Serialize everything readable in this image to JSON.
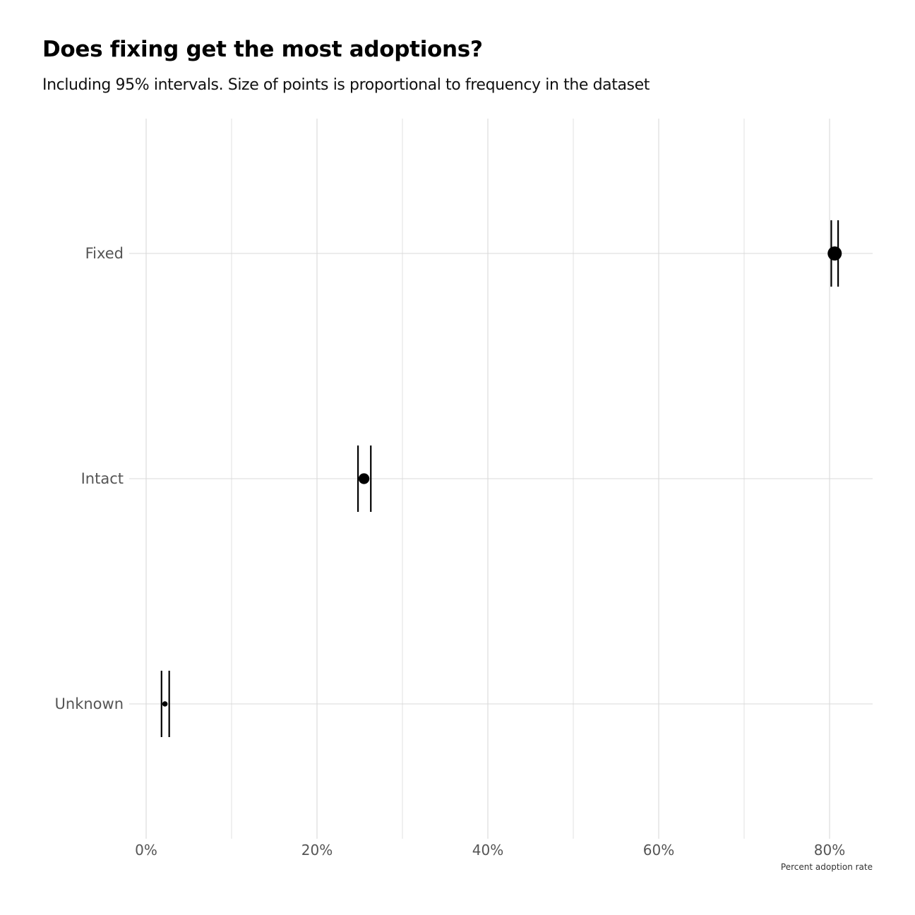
{
  "chart_data": {
    "type": "scatter",
    "title": "Does fixing get the most adoptions?",
    "subtitle": "Including 95% intervals. Size of points is proportional to frequency in the dataset",
    "xlabel": "Percent adoption rate",
    "ylabel": "",
    "xlim": [
      -0.12,
      0.85
    ],
    "x_ticks": [
      {
        "value": 0.0,
        "label": "0%"
      },
      {
        "value": 0.2,
        "label": "20%"
      },
      {
        "value": 0.4,
        "label": "40%"
      },
      {
        "value": 0.6,
        "label": "60%"
      },
      {
        "value": 0.8,
        "label": "80%"
      }
    ],
    "x_minor_gridlines": [
      0.1,
      0.3,
      0.5,
      0.7
    ],
    "categories": [
      "Fixed",
      "Intact",
      "Unknown"
    ],
    "points": [
      {
        "category": "Fixed",
        "estimate": 0.806,
        "ci_low": 0.802,
        "ci_high": 0.81,
        "relative_frequency": 1.0
      },
      {
        "category": "Intact",
        "estimate": 0.255,
        "ci_low": 0.248,
        "ci_high": 0.263,
        "relative_frequency": 0.5
      },
      {
        "category": "Unknown",
        "estimate": 0.022,
        "ci_low": 0.018,
        "ci_high": 0.027,
        "relative_frequency": 0.05
      }
    ],
    "grid": true,
    "point_color": "#000000",
    "grid_color": "#d9d9d9"
  }
}
